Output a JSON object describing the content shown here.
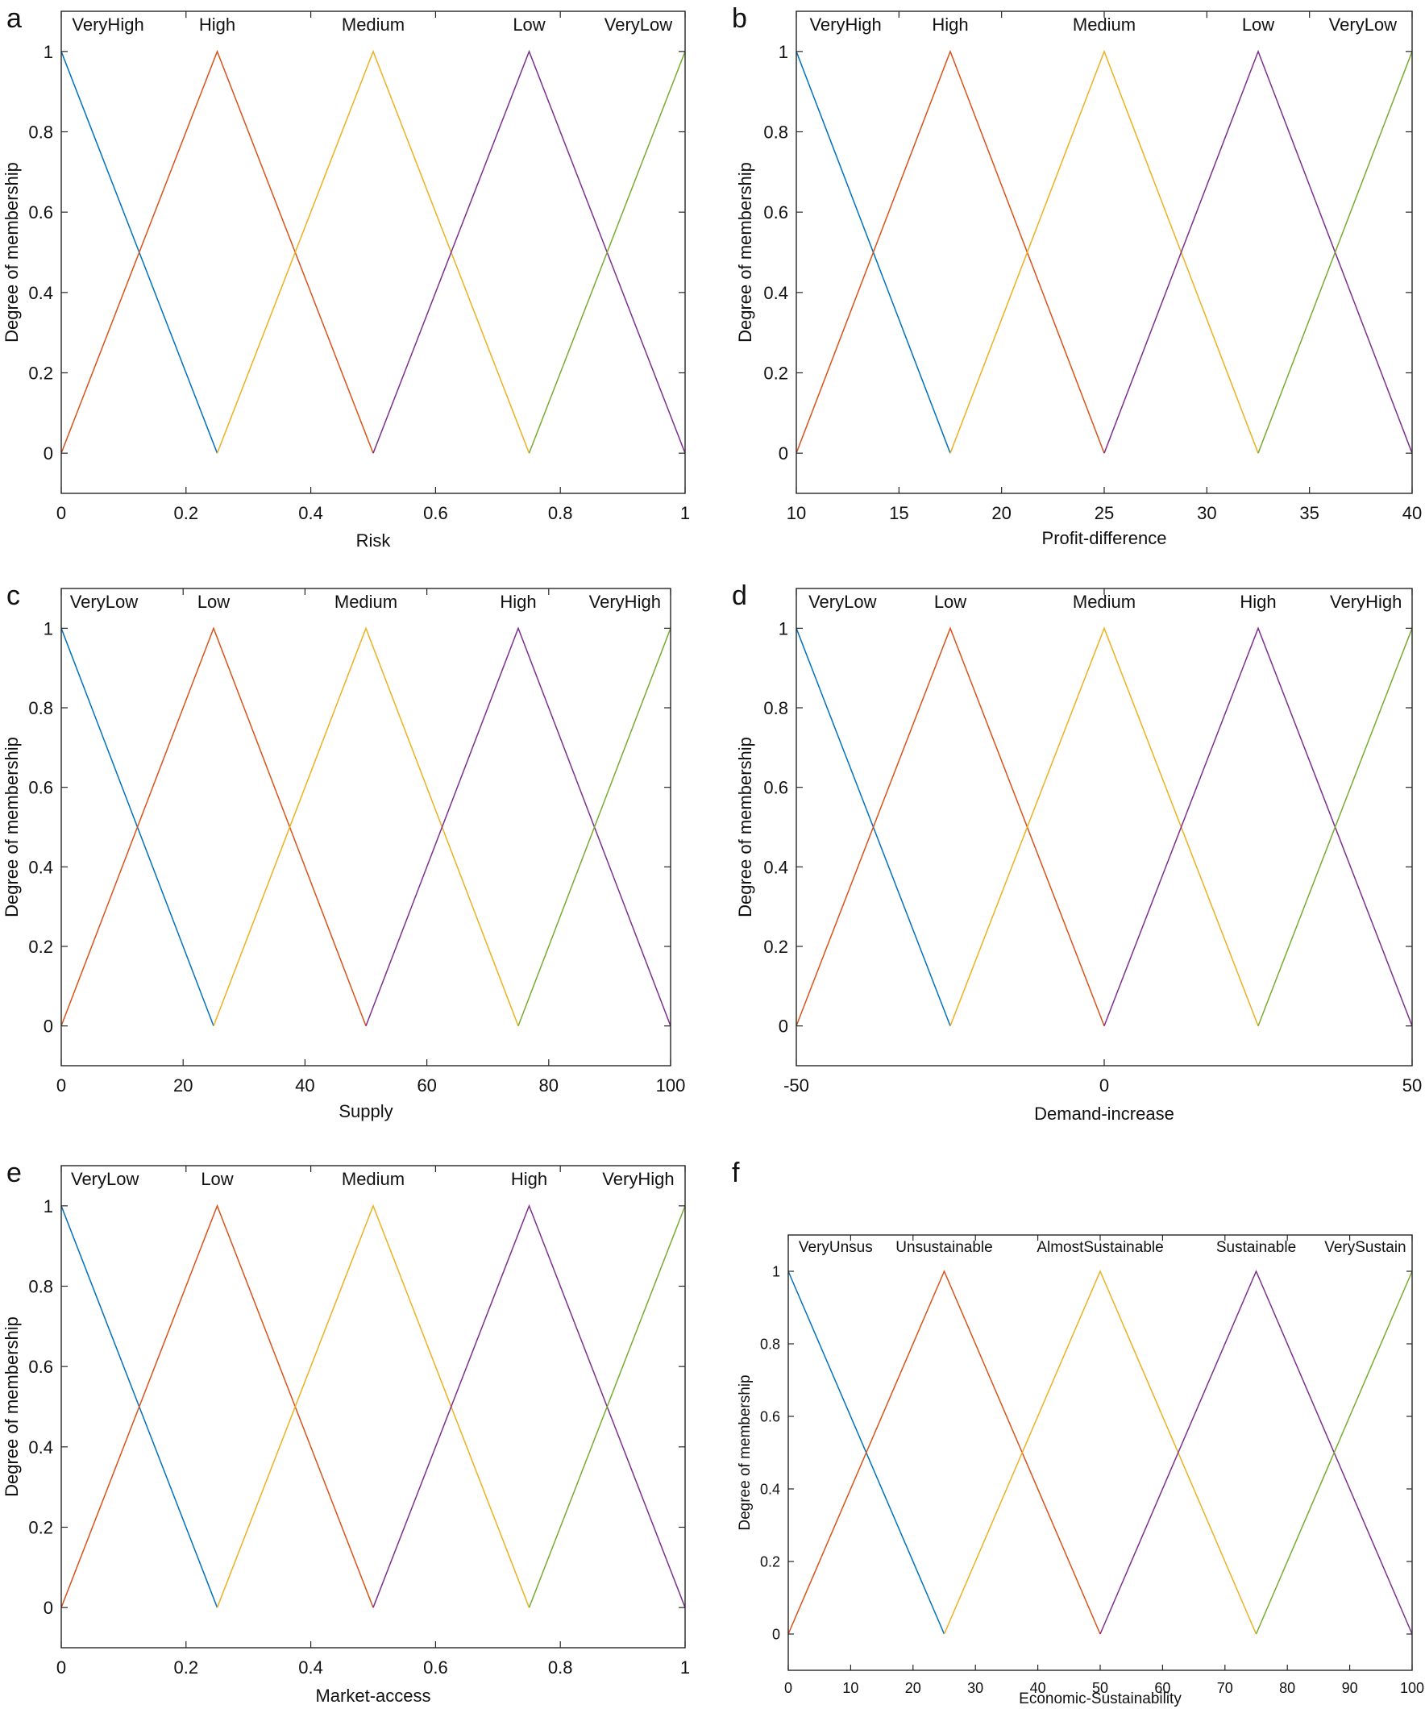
{
  "figure": {
    "panels": [
      "a",
      "b",
      "c",
      "d",
      "e",
      "f"
    ]
  },
  "colors": {
    "c1": "#0072BD",
    "c2": "#D95319",
    "c3": "#EDB120",
    "c4": "#7E2F8E",
    "c5": "#77AC30",
    "axis": "#262626"
  },
  "chart_data": [
    {
      "panel": "a",
      "type": "line",
      "title": "",
      "xlabel": "Risk",
      "ylabel": "Degree of membership",
      "xlim": [
        0,
        1
      ],
      "ylim": [
        -0.1,
        1.1
      ],
      "xticks": [
        0,
        0.2,
        0.4,
        0.6,
        0.8,
        1
      ],
      "xtick_labels": [
        "0",
        "0.2",
        "0.4",
        "0.6",
        "0.8",
        "1"
      ],
      "yticks": [
        0,
        0.2,
        0.4,
        0.6,
        0.8,
        1
      ],
      "ytick_labels": [
        "0",
        "0.2",
        "0.4",
        "0.6",
        "0.8",
        "1"
      ],
      "series": [
        {
          "name": "VeryHigh",
          "points": [
            [
              0,
              1
            ],
            [
              0.25,
              0
            ]
          ]
        },
        {
          "name": "High",
          "points": [
            [
              0,
              0
            ],
            [
              0.25,
              1
            ],
            [
              0.5,
              0
            ]
          ]
        },
        {
          "name": "Medium",
          "points": [
            [
              0.25,
              0
            ],
            [
              0.5,
              1
            ],
            [
              0.75,
              0
            ]
          ]
        },
        {
          "name": "Low",
          "points": [
            [
              0.5,
              0
            ],
            [
              0.75,
              1
            ],
            [
              1,
              0
            ]
          ]
        },
        {
          "name": "VeryLow",
          "points": [
            [
              0.75,
              0
            ],
            [
              1,
              1
            ]
          ]
        }
      ],
      "mf_labels": [
        {
          "text": "VeryHigh",
          "x": 0.075
        },
        {
          "text": "High",
          "x": 0.25
        },
        {
          "text": "Medium",
          "x": 0.5
        },
        {
          "text": "Low",
          "x": 0.75
        },
        {
          "text": "VeryLow",
          "x": 0.925
        }
      ]
    },
    {
      "panel": "b",
      "type": "line",
      "title": "",
      "xlabel": "Profit-difference",
      "ylabel": "Degree of membership",
      "xlim": [
        10,
        40
      ],
      "ylim": [
        -0.1,
        1.1
      ],
      "xticks": [
        10,
        15,
        20,
        25,
        30,
        35,
        40
      ],
      "xtick_labels": [
        "10",
        "15",
        "20",
        "25",
        "30",
        "35",
        "40"
      ],
      "yticks": [
        0,
        0.2,
        0.4,
        0.6,
        0.8,
        1
      ],
      "ytick_labels": [
        "0",
        "0.2",
        "0.4",
        "0.6",
        "0.8",
        "1"
      ],
      "series": [
        {
          "name": "VeryHigh",
          "points": [
            [
              10,
              1
            ],
            [
              17.5,
              0
            ]
          ]
        },
        {
          "name": "High",
          "points": [
            [
              10,
              0
            ],
            [
              17.5,
              1
            ],
            [
              25,
              0
            ]
          ]
        },
        {
          "name": "Medium",
          "points": [
            [
              17.5,
              0
            ],
            [
              25,
              1
            ],
            [
              32.5,
              0
            ]
          ]
        },
        {
          "name": "Low",
          "points": [
            [
              25,
              0
            ],
            [
              32.5,
              1
            ],
            [
              40,
              0
            ]
          ]
        },
        {
          "name": "VeryLow",
          "points": [
            [
              32.5,
              0
            ],
            [
              40,
              1
            ]
          ]
        }
      ],
      "mf_labels": [
        {
          "text": "VeryHigh",
          "x": 12.4
        },
        {
          "text": "High",
          "x": 17.5
        },
        {
          "text": "Medium",
          "x": 25
        },
        {
          "text": "Low",
          "x": 32.5
        },
        {
          "text": "VeryLow",
          "x": 37.6
        }
      ]
    },
    {
      "panel": "c",
      "type": "line",
      "title": "",
      "xlabel": "Supply",
      "ylabel": "Degree of membership",
      "xlim": [
        0,
        100
      ],
      "ylim": [
        -0.1,
        1.1
      ],
      "xticks": [
        0,
        20,
        40,
        60,
        80,
        100
      ],
      "xtick_labels": [
        "0",
        "20",
        "40",
        "60",
        "80",
        "100"
      ],
      "yticks": [
        0,
        0.2,
        0.4,
        0.6,
        0.8,
        1
      ],
      "ytick_labels": [
        "0",
        "0.2",
        "0.4",
        "0.6",
        "0.8",
        "1"
      ],
      "series": [
        {
          "name": "VeryLow",
          "points": [
            [
              0,
              1
            ],
            [
              25,
              0
            ]
          ]
        },
        {
          "name": "Low",
          "points": [
            [
              0,
              0
            ],
            [
              25,
              1
            ],
            [
              50,
              0
            ]
          ]
        },
        {
          "name": "Medium",
          "points": [
            [
              25,
              0
            ],
            [
              50,
              1
            ],
            [
              75,
              0
            ]
          ]
        },
        {
          "name": "High",
          "points": [
            [
              50,
              0
            ],
            [
              75,
              1
            ],
            [
              100,
              0
            ]
          ]
        },
        {
          "name": "VeryHigh",
          "points": [
            [
              75,
              0
            ],
            [
              100,
              1
            ]
          ]
        }
      ],
      "mf_labels": [
        {
          "text": "VeryLow",
          "x": 7
        },
        {
          "text": "Low",
          "x": 25
        },
        {
          "text": "Medium",
          "x": 50
        },
        {
          "text": "High",
          "x": 75
        },
        {
          "text": "VeryHigh",
          "x": 92.5
        }
      ]
    },
    {
      "panel": "d",
      "type": "line",
      "title": "",
      "xlabel": "Demand-increase",
      "ylabel": "Degree of membership",
      "xlim": [
        -50,
        50
      ],
      "ylim": [
        -0.1,
        1.1
      ],
      "xticks": [
        -50,
        0,
        50
      ],
      "xtick_labels": [
        "-50",
        "0",
        "50"
      ],
      "yticks": [
        0,
        0.2,
        0.4,
        0.6,
        0.8,
        1
      ],
      "ytick_labels": [
        "0",
        "0.2",
        "0.4",
        "0.6",
        "0.8",
        "1"
      ],
      "series": [
        {
          "name": "VeryLow",
          "points": [
            [
              -50,
              1
            ],
            [
              -25,
              0
            ]
          ]
        },
        {
          "name": "Low",
          "points": [
            [
              -50,
              0
            ],
            [
              -25,
              1
            ],
            [
              0,
              0
            ]
          ]
        },
        {
          "name": "Medium",
          "points": [
            [
              -25,
              0
            ],
            [
              0,
              1
            ],
            [
              25,
              0
            ]
          ]
        },
        {
          "name": "High",
          "points": [
            [
              0,
              0
            ],
            [
              25,
              1
            ],
            [
              50,
              0
            ]
          ]
        },
        {
          "name": "VeryHigh",
          "points": [
            [
              25,
              0
            ],
            [
              50,
              1
            ]
          ]
        }
      ],
      "mf_labels": [
        {
          "text": "VeryLow",
          "x": -42.5
        },
        {
          "text": "Low",
          "x": -25
        },
        {
          "text": "Medium",
          "x": 0
        },
        {
          "text": "High",
          "x": 25
        },
        {
          "text": "VeryHigh",
          "x": 42.5
        }
      ]
    },
    {
      "panel": "e",
      "type": "line",
      "title": "",
      "xlabel": "Market-access",
      "ylabel": "Degree of membership",
      "xlim": [
        0,
        1
      ],
      "ylim": [
        -0.1,
        1.1
      ],
      "xticks": [
        0,
        0.2,
        0.4,
        0.6,
        0.8,
        1
      ],
      "xtick_labels": [
        "0",
        "0.2",
        "0.4",
        "0.6",
        "0.8",
        "1"
      ],
      "yticks": [
        0,
        0.2,
        0.4,
        0.6,
        0.8,
        1
      ],
      "ytick_labels": [
        "0",
        "0.2",
        "0.4",
        "0.6",
        "0.8",
        "1"
      ],
      "series": [
        {
          "name": "VeryLow",
          "points": [
            [
              0,
              1
            ],
            [
              0.25,
              0
            ]
          ]
        },
        {
          "name": "Low",
          "points": [
            [
              0,
              0
            ],
            [
              0.25,
              1
            ],
            [
              0.5,
              0
            ]
          ]
        },
        {
          "name": "Medium",
          "points": [
            [
              0.25,
              0
            ],
            [
              0.5,
              1
            ],
            [
              0.75,
              0
            ]
          ]
        },
        {
          "name": "High",
          "points": [
            [
              0.5,
              0
            ],
            [
              0.75,
              1
            ],
            [
              1,
              0
            ]
          ]
        },
        {
          "name": "VeryHigh",
          "points": [
            [
              0.75,
              0
            ],
            [
              1,
              1
            ]
          ]
        }
      ],
      "mf_labels": [
        {
          "text": "VeryLow",
          "x": 0.07
        },
        {
          "text": "Low",
          "x": 0.25
        },
        {
          "text": "Medium",
          "x": 0.5
        },
        {
          "text": "High",
          "x": 0.75
        },
        {
          "text": "VeryHigh",
          "x": 0.925
        }
      ]
    },
    {
      "panel": "f",
      "type": "line",
      "title": "",
      "xlabel": "Economic-Sustainability",
      "ylabel": "Degree of membership",
      "xlim": [
        0,
        100
      ],
      "ylim": [
        -0.1,
        1.1
      ],
      "xticks": [
        0,
        10,
        20,
        30,
        40,
        50,
        60,
        70,
        80,
        90,
        100
      ],
      "xtick_labels": [
        "0",
        "10",
        "20",
        "30",
        "40",
        "50",
        "60",
        "70",
        "80",
        "90",
        "100"
      ],
      "yticks": [
        0,
        0.2,
        0.4,
        0.6,
        0.8,
        1
      ],
      "ytick_labels": [
        "0",
        "0.2",
        "0.4",
        "0.6",
        "0.8",
        "1"
      ],
      "series": [
        {
          "name": "VeryUnsus",
          "points": [
            [
              0,
              1
            ],
            [
              25,
              0
            ]
          ]
        },
        {
          "name": "Unsustainable",
          "points": [
            [
              0,
              0
            ],
            [
              25,
              1
            ],
            [
              50,
              0
            ]
          ]
        },
        {
          "name": "AlmostSustainable",
          "points": [
            [
              25,
              0
            ],
            [
              50,
              1
            ],
            [
              75,
              0
            ]
          ]
        },
        {
          "name": "Sustainable",
          "points": [
            [
              50,
              0
            ],
            [
              75,
              1
            ],
            [
              100,
              0
            ]
          ]
        },
        {
          "name": "VerySustain",
          "points": [
            [
              75,
              0
            ],
            [
              100,
              1
            ]
          ]
        }
      ],
      "mf_labels": [
        {
          "text": "VeryUnsus",
          "x": 7.6
        },
        {
          "text": "Unsustainable",
          "x": 25
        },
        {
          "text": "AlmostSustainable",
          "x": 50
        },
        {
          "text": "Sustainable",
          "x": 75
        },
        {
          "text": "VerySustain",
          "x": 92.5
        }
      ]
    }
  ]
}
